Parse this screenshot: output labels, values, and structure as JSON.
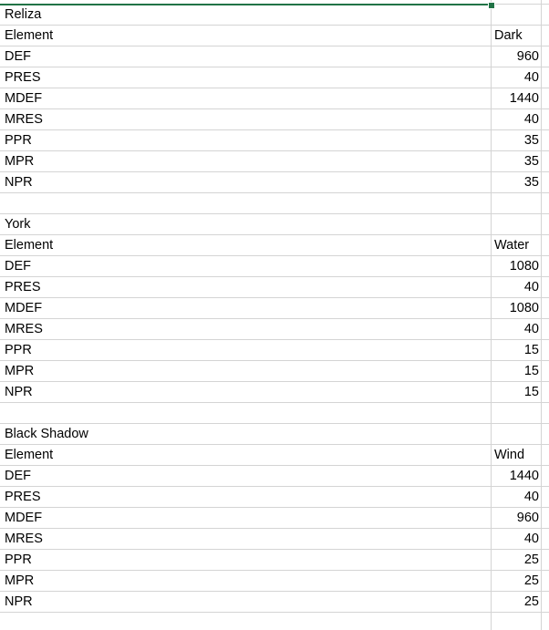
{
  "blocks": [
    {
      "name": "Reliza",
      "header_label": "Element",
      "header_value": "Dark",
      "rows": [
        {
          "label": "DEF",
          "value": "960"
        },
        {
          "label": "PRES",
          "value": "40"
        },
        {
          "label": "MDEF",
          "value": "1440"
        },
        {
          "label": "MRES",
          "value": "40"
        },
        {
          "label": "PPR",
          "value": "35"
        },
        {
          "label": "MPR",
          "value": "35"
        },
        {
          "label": "NPR",
          "value": "35"
        }
      ]
    },
    {
      "name": "York",
      "header_label": "Element",
      "header_value": "Water",
      "rows": [
        {
          "label": "DEF",
          "value": "1080"
        },
        {
          "label": "PRES",
          "value": "40"
        },
        {
          "label": "MDEF",
          "value": "1080"
        },
        {
          "label": "MRES",
          "value": "40"
        },
        {
          "label": "PPR",
          "value": "15"
        },
        {
          "label": "MPR",
          "value": "15"
        },
        {
          "label": "NPR",
          "value": "15"
        }
      ]
    },
    {
      "name": "Black Shadow",
      "header_label": "Element",
      "header_value": "Wind",
      "rows": [
        {
          "label": "DEF",
          "value": "1440"
        },
        {
          "label": "PRES",
          "value": "40"
        },
        {
          "label": "MDEF",
          "value": "960"
        },
        {
          "label": "MRES",
          "value": "40"
        },
        {
          "label": "PPR",
          "value": "25"
        },
        {
          "label": "MPR",
          "value": "25"
        },
        {
          "label": "NPR",
          "value": "25"
        }
      ]
    }
  ]
}
